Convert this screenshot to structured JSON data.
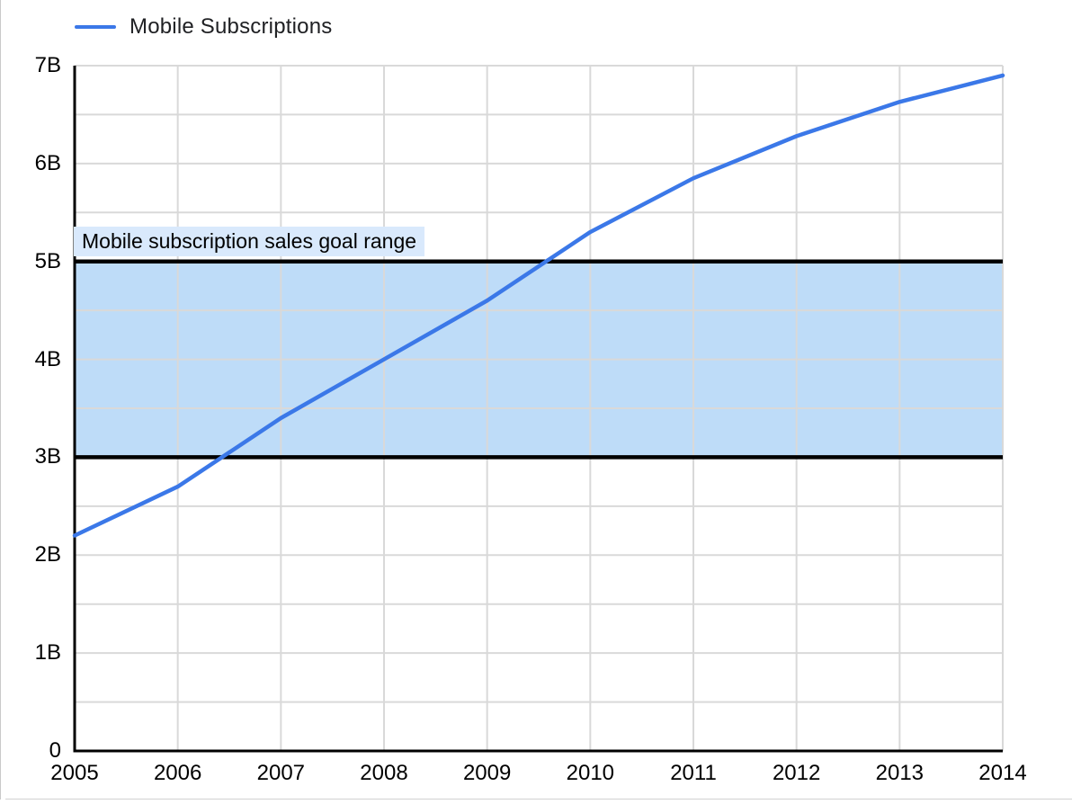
{
  "legend": {
    "position": "top-left",
    "items": [
      {
        "label": "Mobile Subscriptions",
        "swatch": "line-swatch",
        "color": "#3b78e8"
      }
    ]
  },
  "chart_data": {
    "type": "line",
    "title": "",
    "x": [
      2005,
      2006,
      2007,
      2008,
      2009,
      2010,
      2011,
      2012,
      2013,
      2014
    ],
    "x_tick_labels": [
      "2005",
      "2006",
      "2007",
      "2008",
      "2009",
      "2010",
      "2011",
      "2012",
      "2013",
      "2014"
    ],
    "series": [
      {
        "name": "Mobile Subscriptions",
        "color": "#3b78e8",
        "values": [
          2.2,
          2.7,
          3.4,
          4.0,
          4.6,
          5.3,
          5.85,
          6.28,
          6.63,
          6.9
        ],
        "unit": "billions"
      }
    ],
    "ylim": [
      0,
      7
    ],
    "y_ticks": {
      "values": [
        0,
        1,
        2,
        3,
        4,
        5,
        6,
        7
      ],
      "labels": [
        "0",
        "1B",
        "2B",
        "3B",
        "4B",
        "5B",
        "6B",
        "7B"
      ]
    },
    "y_minor_grid_step": 0.5,
    "grid": true,
    "gridline_color": "#d9d9d9",
    "axis_color": "#000000",
    "legend_position": "top-left",
    "annotation_band": {
      "label": "Mobile subscription sales goal range",
      "from": 3,
      "to": 5,
      "fill": "#bedcf8",
      "border_color": "#000000",
      "label_bg": "#d9e9fc",
      "label_color": "#000000"
    }
  }
}
